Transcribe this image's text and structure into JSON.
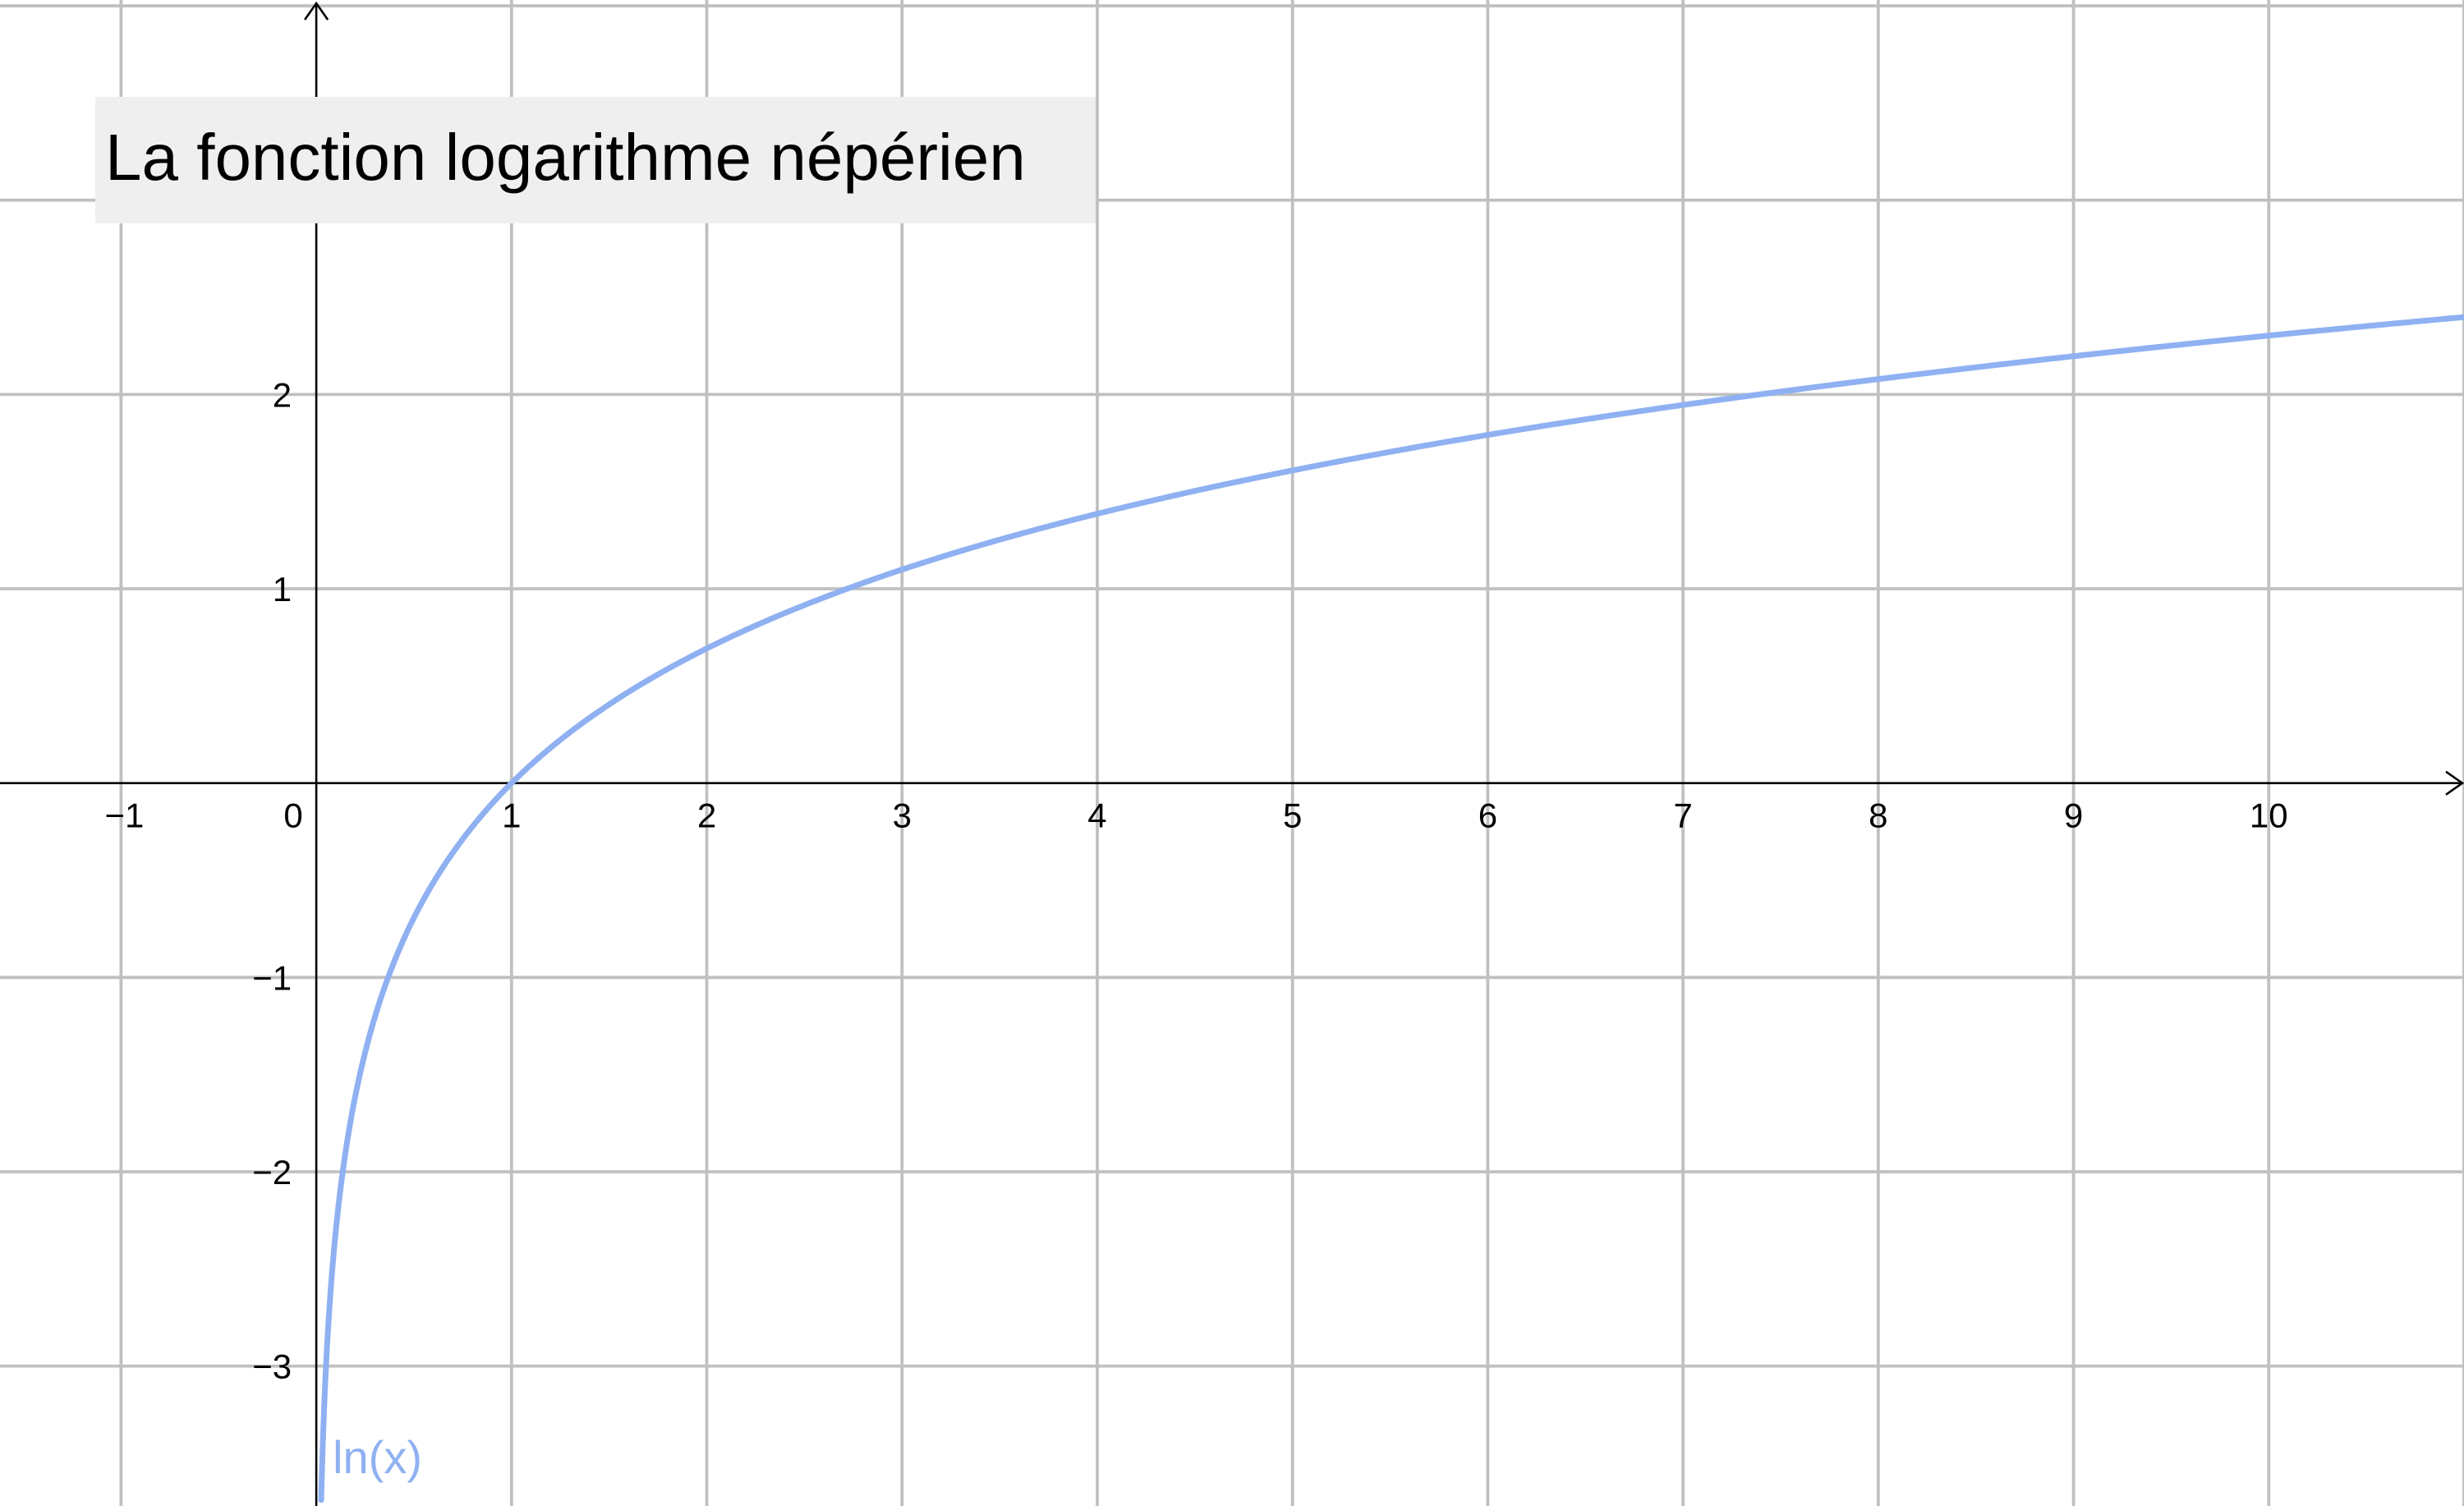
{
  "chart_data": {
    "type": "line",
    "title": "La fonction logarithme népérien",
    "xlabel": "",
    "ylabel": "",
    "xlim": [
      -1.62,
      11.0
    ],
    "ylim": [
      -3.72,
      4.03
    ],
    "grid": true,
    "x_ticks": [
      "−1",
      "0",
      "1",
      "2",
      "3",
      "4",
      "5",
      "6",
      "7",
      "8",
      "9",
      "10"
    ],
    "x_tick_values": [
      -1,
      0,
      1,
      2,
      3,
      4,
      5,
      6,
      7,
      8,
      9,
      10
    ],
    "y_ticks": [
      "2",
      "1",
      "−1",
      "−2",
      "−3"
    ],
    "y_tick_values": [
      2,
      1,
      -1,
      -2,
      -3
    ],
    "series": [
      {
        "name": "ln(x)",
        "color": "#8fb1f2",
        "x": [
          0.025,
          0.05,
          0.1,
          0.2,
          0.3,
          0.5,
          0.75,
          1,
          1.5,
          2,
          2.5,
          3,
          4,
          5,
          6,
          7,
          8,
          9,
          10,
          11
        ],
        "y": [
          -3.689,
          -2.996,
          -2.303,
          -1.609,
          -1.204,
          -0.693,
          -0.288,
          0,
          0.405,
          0.693,
          0.916,
          1.099,
          1.386,
          1.609,
          1.792,
          1.946,
          2.079,
          2.197,
          2.303,
          2.398
        ]
      }
    ]
  }
}
